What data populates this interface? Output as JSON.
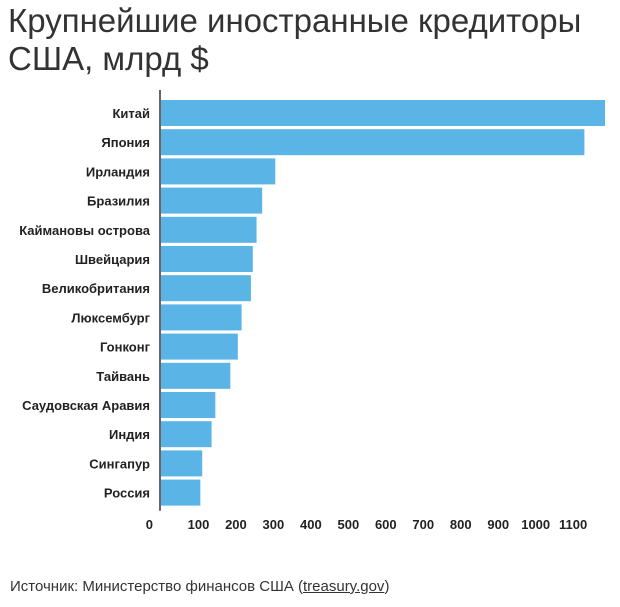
{
  "title": "Крупнейшие иностранные кредиторы США, млрд $",
  "source": {
    "prefix": "Источник: Министерство финансов США (",
    "link": "treasury.gov",
    "suffix": ")"
  },
  "chart_data": {
    "type": "bar",
    "orientation": "horizontal",
    "categories": [
      "Китай",
      "Япония",
      "Ирландия",
      "Бразилия",
      "Каймановы острова",
      "Швейцария",
      "Великобритания",
      "Люксембург",
      "Гонконг",
      "Тайвань",
      "Саудовская Аравия",
      "Индия",
      "Сингапур",
      "Россия"
    ],
    "values": [
      1185,
      1130,
      305,
      270,
      255,
      245,
      240,
      215,
      205,
      185,
      145,
      135,
      110,
      105
    ],
    "xticks": [
      0,
      100,
      200,
      300,
      400,
      500,
      600,
      700,
      800,
      900,
      1000,
      1100
    ],
    "xlim": [
      0,
      1185
    ],
    "bar_color": "#5ab4e5",
    "grid": false
  }
}
